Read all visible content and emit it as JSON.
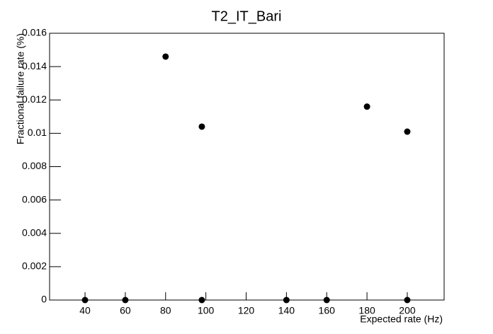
{
  "chart_data": {
    "type": "scatter",
    "title": "T2_IT_Bari",
    "x_label": "Expected rate (Hz)",
    "y_label": "Fractional failure rate (%)",
    "x": [
      40,
      60,
      80,
      98,
      98,
      140,
      160,
      180,
      200,
      200
    ],
    "values": [
      0,
      0,
      0.0146,
      0.0104,
      0,
      0,
      0,
      0.0116,
      0.0101,
      0
    ],
    "color": "#000000",
    "xlim": [
      22.4,
      218.3
    ],
    "xticks": [
      40,
      60,
      80,
      100,
      120,
      140,
      160,
      180,
      200
    ],
    "ylim": [
      0,
      0.016
    ],
    "yticks": [
      0,
      0.002,
      0.004,
      0.006,
      0.008,
      0.01,
      0.012,
      0.014,
      0.016
    ],
    "grid": false
  }
}
